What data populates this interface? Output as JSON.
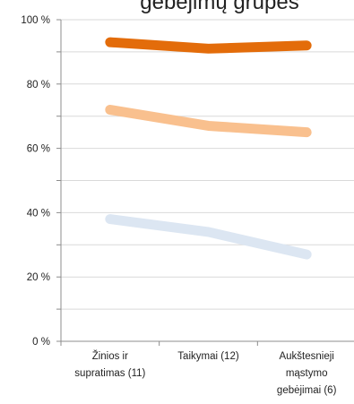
{
  "chart_data": {
    "type": "line",
    "title": "gebėjimų grupės",
    "categories": [
      "Žinios ir supratimas (11)",
      "Taikymai (12)",
      "Aukštesnieji mąstymo gebėjimai (6)"
    ],
    "category_lines": [
      [
        "Žinios ir",
        "supratimas (11)"
      ],
      [
        "Taikymai (12)"
      ],
      [
        "Aukštesnieji",
        "mąstymo",
        "gebėjimai (6)"
      ]
    ],
    "y_ticks": [
      "0 %",
      "20 %",
      "40 %",
      "60 %",
      "80 %",
      "100 %"
    ],
    "ylim": [
      0,
      100
    ],
    "grid": true,
    "series": [
      {
        "values": [
          93,
          91,
          92
        ],
        "color": "#E36C0A"
      },
      {
        "values": [
          72,
          67,
          65
        ],
        "color": "#F9C08E"
      },
      {
        "values": [
          38,
          34,
          27
        ],
        "color": "#DCE6F2"
      }
    ]
  }
}
